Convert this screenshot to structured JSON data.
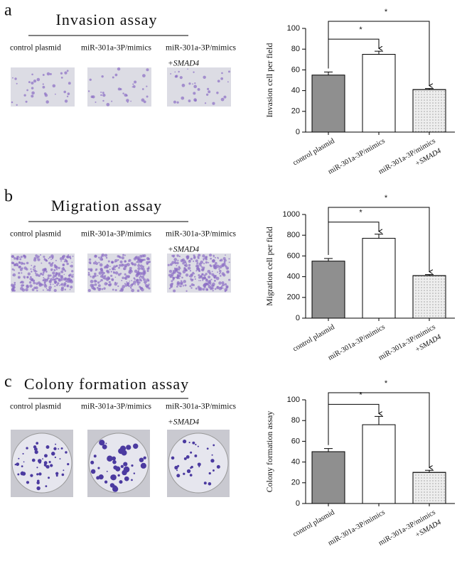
{
  "panels": [
    {
      "label": "a",
      "title": "Invasion assay",
      "captions": [
        [
          "control plasmid"
        ],
        [
          "miR-301a-3P/mimics"
        ],
        [
          "miR-301a-3P/mimics",
          "+SMAD4"
        ]
      ]
    },
    {
      "label": "b",
      "title": "Migration assay",
      "captions": [
        [
          "control plasmid"
        ],
        [
          "miR-301a-3P/mimics"
        ],
        [
          "miR-301a-3P/mimics",
          "+SMAD4"
        ]
      ]
    },
    {
      "label": "c",
      "title": "Colony formation assay",
      "captions": [
        [
          "control plasmid"
        ],
        [
          "miR-301a-3P/mimics"
        ],
        [
          "miR-301a-3P/mimics",
          "+SMAD4"
        ]
      ]
    }
  ],
  "chart_data": [
    {
      "type": "bar",
      "ylabel": "Invasion cell per field",
      "categories": [
        [
          "control plasmid"
        ],
        [
          "miR-301a-3P/mimics"
        ],
        [
          "miR-301a-3P/mimics",
          "+SMAD4"
        ]
      ],
      "values": [
        55,
        75,
        41
      ],
      "errors": [
        3,
        3,
        1
      ],
      "colors": [
        "#8f8f8f",
        "#ffffff",
        "#eeeeee"
      ],
      "ylim": [
        0,
        100
      ],
      "yticks": [
        0,
        20,
        40,
        60,
        80,
        100
      ],
      "significance": [
        "*",
        "*"
      ]
    },
    {
      "type": "bar",
      "ylabel": "Migration cell per field",
      "categories": [
        [
          "control plasmid"
        ],
        [
          "miR-301a-3P/mimics"
        ],
        [
          "miR-301a-3P/mimics",
          "+SMAD4"
        ]
      ],
      "values": [
        550,
        770,
        410
      ],
      "errors": [
        25,
        40,
        10
      ],
      "colors": [
        "#8f8f8f",
        "#ffffff",
        "#eeeeee"
      ],
      "ylim": [
        0,
        1000
      ],
      "yticks": [
        0,
        200,
        400,
        600,
        800,
        1000
      ],
      "significance": [
        "*",
        "*"
      ]
    },
    {
      "type": "bar",
      "ylabel": "Colony formation assay",
      "categories": [
        [
          "control plasmid"
        ],
        [
          "miR-301a-3P/mimics"
        ],
        [
          "miR-301a-3P/mimics",
          "+SMAD4"
        ]
      ],
      "values": [
        50,
        76,
        30
      ],
      "errors": [
        3,
        8,
        2
      ],
      "colors": [
        "#8f8f8f",
        "#ffffff",
        "#eeeeee"
      ],
      "ylim": [
        0,
        100
      ],
      "yticks": [
        0,
        20,
        40,
        60,
        80,
        100
      ],
      "significance": [
        "*",
        "*"
      ]
    }
  ]
}
